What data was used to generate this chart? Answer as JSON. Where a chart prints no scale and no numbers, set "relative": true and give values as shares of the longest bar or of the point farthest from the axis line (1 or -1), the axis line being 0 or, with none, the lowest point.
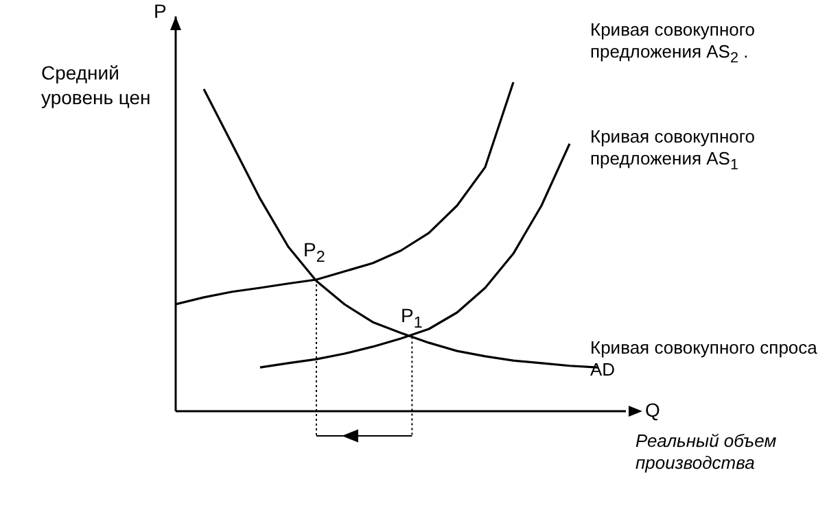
{
  "chart_data": {
    "type": "line",
    "relative": true,
    "ylabel": "Средний уровень цен",
    "xlabel": "Реальный объем производства",
    "categories": [
      null,
      null,
      null,
      null,
      null,
      null,
      null,
      null,
      null,
      null,
      null,
      null,
      null,
      null,
      null,
      null,
      null
    ],
    "series": [
      {
        "name": "Кривая совокупного предложения AS$_{2}$ .",
        "color": "#000000",
        "values": [
          0.325,
          0.346,
          0.363,
          0.375,
          0.388,
          0.4,
          0.425,
          0.45,
          0.488,
          0.542,
          0.625,
          0.742,
          1.0,
          null,
          null,
          null,
          null
        ]
      },
      {
        "name": "Кривая совокупного предложения AS$_{1}$",
        "color": "#000000",
        "values": [
          null,
          null,
          null,
          0.133,
          0.146,
          0.158,
          0.175,
          0.196,
          0.221,
          0.25,
          0.3,
          0.375,
          0.479,
          0.625,
          0.813,
          null,
          null
        ]
      },
      {
        "name": "Кривая совокупного спроса AD",
        "color": "#000000",
        "values": [
          null,
          0.979,
          0.813,
          0.646,
          0.5,
          0.396,
          0.325,
          0.271,
          0.238,
          0.208,
          0.183,
          0.167,
          0.154,
          0.146,
          0.138,
          0.133,
          null
        ]
      }
    ],
    "annotations": [
      "P",
      "Q",
      "P$_{2}$",
      "P$_{1}$"
    ],
    "legend": false,
    "grid": false,
    "marker": "none",
    "line_style": "solid"
  }
}
